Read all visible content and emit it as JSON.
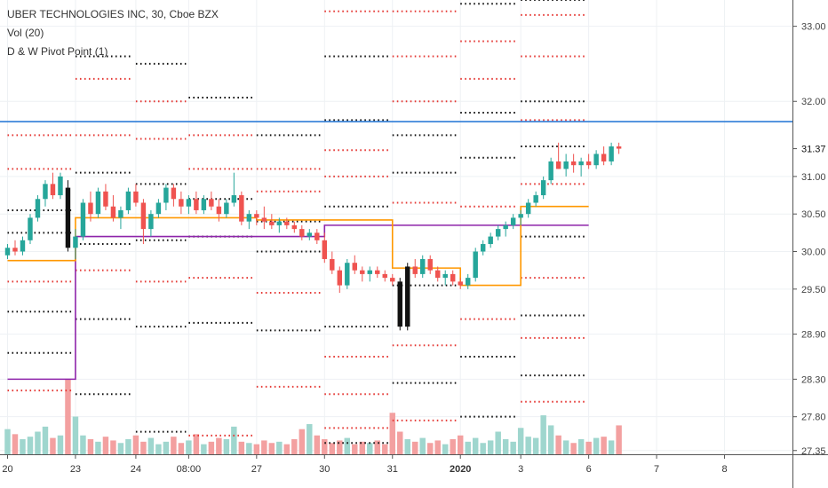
{
  "legend": {
    "title": "UBER TECHNOLOGIES INC, 30, Cboe BZX",
    "indicator_vol": "Vol (20)",
    "indicator_pivot": "D & W Pivot Point (1)"
  },
  "colors": {
    "up": "#26a69a",
    "down": "#ef5350",
    "vol_up": "#9fd6ce",
    "vol_down": "#f3a0a0",
    "grid": "#eef1f4",
    "daily_pivot": "#ff9800",
    "weekly_pivot": "#8e24aa",
    "horizontal_line": "#2e7dd7",
    "dots_black": "#111111",
    "dots_red": "#e53935"
  },
  "chart_data": {
    "type": "candlestick",
    "title": "UBER TECHNOLOGIES INC, 30, Cboe BZX",
    "interval": "30",
    "exchange": "Cboe BZX",
    "y_axis": {
      "ticks": [
        33.0,
        32.0,
        31.37,
        31.0,
        30.5,
        30.0,
        29.5,
        28.9,
        28.3,
        27.8,
        27.35
      ],
      "tick_labels": [
        "33.00",
        "32.00",
        "31.37",
        "31.00",
        "30.50",
        "30.00",
        "29.50",
        "28.90",
        "28.30",
        "27.80",
        "27.35"
      ],
      "last_price": 31.37,
      "last_price_label": "31.37",
      "range": [
        27.3,
        33.35
      ]
    },
    "x_axis": {
      "ticks": [
        0,
        9,
        17,
        24,
        33,
        42,
        51,
        60,
        68,
        77,
        86,
        95
      ],
      "tick_labels": [
        "20",
        "23",
        "24",
        "08:00",
        "27",
        "30",
        "31",
        "2020",
        "3",
        "6",
        "7",
        "8"
      ],
      "range": [
        -1,
        104
      ]
    },
    "ohlc": [
      [
        29.95,
        30.1,
        29.9,
        30.05
      ],
      [
        30.05,
        30.15,
        29.95,
        30.0
      ],
      [
        30.0,
        30.2,
        29.95,
        30.15
      ],
      [
        30.15,
        30.5,
        30.1,
        30.45
      ],
      [
        30.45,
        30.75,
        30.4,
        30.7
      ],
      [
        30.7,
        30.95,
        30.6,
        30.9
      ],
      [
        30.9,
        31.05,
        30.7,
        30.75
      ],
      [
        30.75,
        31.05,
        30.7,
        31.0
      ],
      [
        30.85,
        30.95,
        30.0,
        30.05
      ],
      [
        30.05,
        30.3,
        29.9,
        30.2
      ],
      [
        30.2,
        30.7,
        30.15,
        30.65
      ],
      [
        30.65,
        30.8,
        30.4,
        30.5
      ],
      [
        30.5,
        30.85,
        30.45,
        30.8
      ],
      [
        30.8,
        30.9,
        30.55,
        30.6
      ],
      [
        30.6,
        30.75,
        30.4,
        30.45
      ],
      [
        30.45,
        30.6,
        30.3,
        30.55
      ],
      [
        30.55,
        30.85,
        30.5,
        30.8
      ],
      [
        30.8,
        30.9,
        30.6,
        30.65
      ],
      [
        30.65,
        30.7,
        30.1,
        30.3
      ],
      [
        30.3,
        30.55,
        30.2,
        30.5
      ],
      [
        30.5,
        30.7,
        30.45,
        30.65
      ],
      [
        30.65,
        30.9,
        30.55,
        30.85
      ],
      [
        30.85,
        30.9,
        30.6,
        30.7
      ],
      [
        30.7,
        30.8,
        30.5,
        30.6
      ],
      [
        30.6,
        30.75,
        30.5,
        30.7
      ],
      [
        30.7,
        30.8,
        30.5,
        30.55
      ],
      [
        30.55,
        30.75,
        30.5,
        30.7
      ],
      [
        30.7,
        30.8,
        30.55,
        30.6
      ],
      [
        30.6,
        30.7,
        30.4,
        30.5
      ],
      [
        30.5,
        30.7,
        30.45,
        30.65
      ],
      [
        30.65,
        31.05,
        30.6,
        30.75
      ],
      [
        30.75,
        30.8,
        30.35,
        30.4
      ],
      [
        30.4,
        30.55,
        30.3,
        30.5
      ],
      [
        30.5,
        30.55,
        30.35,
        30.45
      ],
      [
        30.45,
        30.6,
        30.3,
        30.4
      ],
      [
        30.4,
        30.5,
        30.3,
        30.35
      ],
      [
        30.35,
        30.45,
        30.25,
        30.4
      ],
      [
        30.4,
        30.45,
        30.3,
        30.35
      ],
      [
        30.35,
        30.4,
        30.25,
        30.3
      ],
      [
        30.3,
        30.35,
        30.15,
        30.2
      ],
      [
        30.2,
        30.3,
        30.15,
        30.25
      ],
      [
        30.25,
        30.3,
        30.1,
        30.15
      ],
      [
        30.15,
        30.25,
        29.85,
        29.9
      ],
      [
        29.9,
        30.0,
        29.7,
        29.75
      ],
      [
        29.75,
        29.8,
        29.45,
        29.55
      ],
      [
        29.55,
        29.9,
        29.5,
        29.85
      ],
      [
        29.85,
        29.95,
        29.7,
        29.75
      ],
      [
        29.75,
        29.8,
        29.6,
        29.7
      ],
      [
        29.7,
        29.8,
        29.6,
        29.75
      ],
      [
        29.75,
        29.8,
        29.65,
        29.7
      ],
      [
        29.7,
        29.75,
        29.6,
        29.65
      ],
      [
        29.65,
        29.7,
        29.55,
        29.6
      ],
      [
        29.6,
        29.65,
        28.95,
        29.0
      ],
      [
        29.0,
        29.85,
        28.95,
        29.8
      ],
      [
        29.8,
        29.9,
        29.65,
        29.7
      ],
      [
        29.7,
        29.95,
        29.65,
        29.9
      ],
      [
        29.9,
        29.95,
        29.7,
        29.75
      ],
      [
        29.75,
        29.8,
        29.6,
        29.65
      ],
      [
        29.65,
        29.75,
        29.55,
        29.7
      ],
      [
        29.7,
        29.75,
        29.55,
        29.6
      ],
      [
        29.6,
        29.65,
        29.5,
        29.55
      ],
      [
        29.55,
        29.7,
        29.5,
        29.65
      ],
      [
        29.65,
        30.05,
        29.6,
        30.0
      ],
      [
        30.0,
        30.15,
        29.95,
        30.1
      ],
      [
        30.1,
        30.25,
        30.05,
        30.2
      ],
      [
        30.2,
        30.35,
        30.15,
        30.3
      ],
      [
        30.3,
        30.4,
        30.2,
        30.35
      ],
      [
        30.35,
        30.5,
        30.3,
        30.45
      ],
      [
        30.45,
        30.55,
        30.35,
        30.5
      ],
      [
        30.5,
        30.7,
        30.45,
        30.65
      ],
      [
        30.65,
        30.8,
        30.6,
        30.75
      ],
      [
        30.75,
        31.0,
        30.7,
        30.95
      ],
      [
        30.95,
        31.25,
        30.9,
        31.2
      ],
      [
        31.2,
        31.45,
        31.1,
        31.1
      ],
      [
        31.1,
        31.3,
        31.0,
        31.2
      ],
      [
        31.2,
        31.3,
        31.05,
        31.15
      ],
      [
        31.15,
        31.25,
        31.0,
        31.2
      ],
      [
        31.2,
        31.3,
        31.1,
        31.15
      ],
      [
        31.15,
        31.35,
        31.1,
        31.3
      ],
      [
        31.3,
        31.4,
        31.15,
        31.2
      ],
      [
        31.2,
        31.45,
        31.15,
        31.4
      ],
      [
        31.4,
        31.45,
        31.3,
        31.37
      ]
    ],
    "volume": [
      2,
      1.6,
      1.2,
      1.4,
      1.8,
      2.2,
      1.3,
      1.5,
      6,
      3,
      1.5,
      1.2,
      1,
      1.4,
      1.1,
      0.9,
      1.2,
      1.5,
      1.0,
      1.3,
      0.8,
      1.0,
      1.4,
      0.9,
      1.1,
      1.6,
      0.8,
      1.0,
      1.3,
      1.2,
      2.2,
      1.0,
      0.9,
      0.8,
      1.1,
      0.9,
      1.0,
      0.8,
      1.2,
      2.0,
      2.4,
      1.5,
      1.2,
      0.9,
      1.1,
      1.3,
      0.8,
      1.0,
      0.9,
      1.1,
      0.8,
      3.3,
      1.8,
      1.2,
      1.0,
      1.3,
      0.9,
      1.1,
      0.8,
      1.2,
      1.5,
      1.0,
      1.3,
      0.9,
      1.1,
      1.8,
      1.2,
      1.0,
      2.1,
      1.4,
      1.3,
      3.1,
      2.3,
      1.5,
      1.1,
      0.9,
      1.2,
      1.0,
      1.3,
      1.4,
      1.1,
      2.3
    ],
    "daily_pivot": [
      [
        0,
        29.88
      ],
      [
        9,
        29.88
      ],
      [
        9,
        30.45
      ],
      [
        33,
        30.45
      ],
      [
        33,
        30.42
      ],
      [
        51,
        30.42
      ],
      [
        51,
        29.78
      ],
      [
        60,
        29.78
      ],
      [
        60,
        29.55
      ],
      [
        68,
        29.55
      ],
      [
        68,
        30.6
      ],
      [
        77,
        30.6
      ]
    ],
    "weekly_pivot": [
      [
        0,
        28.3
      ],
      [
        9,
        28.3
      ],
      [
        9,
        30.2
      ],
      [
        42,
        30.2
      ],
      [
        42,
        30.35
      ],
      [
        77,
        30.35
      ]
    ],
    "horizontal_line": 31.73,
    "pivot_levels": [
      {
        "x0": 0,
        "x1": 9,
        "levels": [
          [
            31.55,
            "r"
          ],
          [
            31.1,
            "r"
          ],
          [
            30.55,
            "k"
          ],
          [
            30.25,
            "k"
          ],
          [
            29.6,
            "r"
          ],
          [
            29.2,
            "k"
          ],
          [
            28.65,
            "k"
          ],
          [
            28.15,
            "r"
          ]
        ]
      },
      {
        "x0": 9,
        "x1": 17,
        "levels": [
          [
            32.6,
            "k"
          ],
          [
            32.3,
            "r"
          ],
          [
            31.55,
            "r"
          ],
          [
            31.05,
            "k"
          ],
          [
            30.1,
            "k"
          ],
          [
            29.75,
            "r"
          ],
          [
            29.1,
            "k"
          ],
          [
            28.1,
            "k"
          ]
        ]
      },
      {
        "x0": 17,
        "x1": 24,
        "levels": [
          [
            32.5,
            "k"
          ],
          [
            32.0,
            "r"
          ],
          [
            31.5,
            "r"
          ],
          [
            30.9,
            "k"
          ],
          [
            30.15,
            "k"
          ],
          [
            29.6,
            "r"
          ],
          [
            29.0,
            "k"
          ],
          [
            27.6,
            "k"
          ]
        ]
      },
      {
        "x0": 24,
        "x1": 33,
        "levels": [
          [
            32.05,
            "k"
          ],
          [
            31.55,
            "r"
          ],
          [
            31.1,
            "r"
          ],
          [
            30.7,
            "k"
          ],
          [
            30.2,
            "k"
          ],
          [
            29.65,
            "r"
          ],
          [
            29.05,
            "k"
          ],
          [
            27.55,
            "r"
          ]
        ]
      },
      {
        "x0": 33,
        "x1": 42,
        "levels": [
          [
            31.55,
            "k"
          ],
          [
            31.1,
            "r"
          ],
          [
            30.8,
            "r"
          ],
          [
            30.4,
            "k"
          ],
          [
            30.0,
            "k"
          ],
          [
            29.45,
            "r"
          ],
          [
            28.95,
            "k"
          ],
          [
            28.2,
            "r"
          ]
        ]
      },
      {
        "x0": 42,
        "x1": 51,
        "levels": [
          [
            33.2,
            "r"
          ],
          [
            32.6,
            "k"
          ],
          [
            31.75,
            "k"
          ],
          [
            31.35,
            "r"
          ],
          [
            31.0,
            "r"
          ],
          [
            30.6,
            "k"
          ],
          [
            29.0,
            "k"
          ],
          [
            28.6,
            "r"
          ],
          [
            28.1,
            "r"
          ],
          [
            27.65,
            "r"
          ],
          [
            27.45,
            "k"
          ]
        ]
      },
      {
        "x0": 51,
        "x1": 60,
        "levels": [
          [
            33.2,
            "r"
          ],
          [
            32.6,
            "r"
          ],
          [
            32.0,
            "r"
          ],
          [
            31.55,
            "k"
          ],
          [
            31.05,
            "k"
          ],
          [
            30.65,
            "r"
          ],
          [
            29.55,
            "k"
          ],
          [
            28.75,
            "r"
          ],
          [
            28.25,
            "k"
          ],
          [
            27.75,
            "r"
          ]
        ]
      },
      {
        "x0": 60,
        "x1": 68,
        "levels": [
          [
            33.3,
            "k"
          ],
          [
            32.8,
            "r"
          ],
          [
            32.3,
            "r"
          ],
          [
            31.85,
            "k"
          ],
          [
            31.25,
            "k"
          ],
          [
            30.6,
            "r"
          ],
          [
            29.1,
            "r"
          ],
          [
            28.6,
            "k"
          ],
          [
            27.8,
            "k"
          ]
        ]
      },
      {
        "x0": 68,
        "x1": 77,
        "levels": [
          [
            33.35,
            "k"
          ],
          [
            33.15,
            "r"
          ],
          [
            32.6,
            "r"
          ],
          [
            32.0,
            "k"
          ],
          [
            31.75,
            "r"
          ],
          [
            31.4,
            "k"
          ],
          [
            30.9,
            "r"
          ],
          [
            30.2,
            "k"
          ],
          [
            29.65,
            "r"
          ],
          [
            29.15,
            "k"
          ],
          [
            28.85,
            "r"
          ],
          [
            28.35,
            "k"
          ],
          [
            28.0,
            "r"
          ]
        ]
      }
    ]
  }
}
